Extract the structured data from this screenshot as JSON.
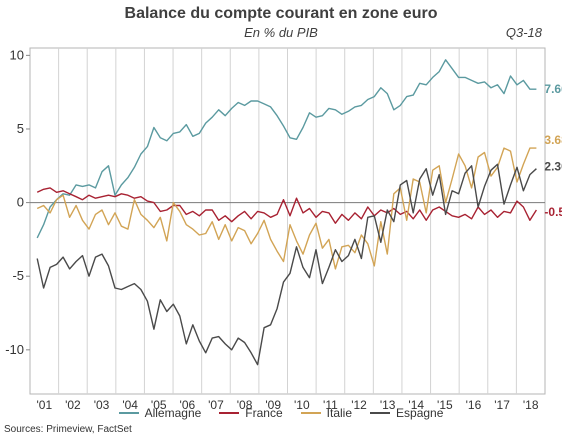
{
  "header": {
    "title": "Balance du compte courant en zone euro",
    "subtitle": "En % du PIB",
    "period": "Q3-18"
  },
  "source": "Sources: Primeview, FactSet",
  "chart_data": {
    "type": "line",
    "title": "Balance du compte courant en zone euro",
    "subtitle": "En % du PIB",
    "x_unit": "quarter",
    "x_tick_labels": [
      "'01",
      "'02",
      "'03",
      "'04",
      "'05",
      "'06",
      "'07",
      "'08",
      "'09",
      "'10",
      "'11",
      "'12",
      "'13",
      "'14",
      "'15",
      "'16",
      "'17",
      "'18"
    ],
    "x_start": "2000-Q4",
    "x_end": "2018-Q3",
    "ylim": [
      -13,
      10.5
    ],
    "y_ticks": [
      10,
      5,
      0,
      -5,
      -10
    ],
    "grid": "vertical",
    "legend_position": "bottom",
    "series": [
      {
        "name": "Allemagne",
        "color": "#5b9aa0",
        "end_label": "7.66",
        "values": [
          -2.4,
          -1.5,
          -0.3,
          0.2,
          0.6,
          0.5,
          1.2,
          1.1,
          1.2,
          1.0,
          2.1,
          2.5,
          0.5,
          1.2,
          1.7,
          2.4,
          3.3,
          3.8,
          5.1,
          4.4,
          4.2,
          4.7,
          4.8,
          5.3,
          4.5,
          4.7,
          5.4,
          5.8,
          6.3,
          5.9,
          6.4,
          6.8,
          6.6,
          6.9,
          6.9,
          6.7,
          6.5,
          5.9,
          5.2,
          4.4,
          4.3,
          5.1,
          6.1,
          5.8,
          5.9,
          6.4,
          6.3,
          6.0,
          6.2,
          6.5,
          6.6,
          7.0,
          7.2,
          7.8,
          7.4,
          6.3,
          6.6,
          7.2,
          7.3,
          8.1,
          8.0,
          8.5,
          8.9,
          9.7,
          9.1,
          8.5,
          8.5,
          8.3,
          8.1,
          8.2,
          7.8,
          8.0,
          7.4,
          8.6,
          8.0,
          8.3,
          7.7,
          7.7
        ]
      },
      {
        "name": "France",
        "color": "#a82232",
        "end_label": "-0.52",
        "values": [
          0.7,
          0.9,
          1.0,
          0.7,
          0.8,
          0.6,
          0.4,
          0.2,
          0.5,
          0.3,
          0.4,
          0.5,
          0.4,
          0.6,
          0.5,
          0.3,
          0.4,
          0.1,
          0.0,
          -0.6,
          -0.5,
          -0.2,
          -0.2,
          -0.8,
          -0.6,
          -0.9,
          -0.5,
          -0.5,
          -1.2,
          -0.9,
          -1.3,
          -0.9,
          -0.6,
          -1.1,
          -0.6,
          -0.7,
          -1.0,
          -0.8,
          0.2,
          -0.9,
          0.3,
          -0.7,
          -0.4,
          -1.0,
          -0.6,
          -0.7,
          -1.4,
          -0.8,
          -1.2,
          -0.7,
          -1.1,
          -0.3,
          -0.9,
          -0.5,
          -0.7,
          -0.4,
          -0.8,
          -0.6,
          -1.1,
          -0.5,
          -1.2,
          -0.5,
          -0.3,
          -0.6,
          -0.9,
          -1.0,
          -0.8,
          -1.1,
          -0.3,
          -0.8,
          -0.5,
          -1.0,
          -0.6,
          -0.7,
          0.1,
          -0.3,
          -1.2,
          -0.5
        ]
      },
      {
        "name": "Italie",
        "color": "#d2a455",
        "end_label": "3.68",
        "values": [
          -0.4,
          -0.2,
          -0.7,
          0.2,
          0.5,
          -1.0,
          -0.2,
          -1.2,
          -1.8,
          -0.8,
          -0.5,
          -1.5,
          -0.7,
          -1.6,
          -1.8,
          0.2,
          -0.8,
          -1.2,
          -1.7,
          -1.0,
          -2.6,
          0.0,
          -0.6,
          -1.5,
          -1.8,
          -2.2,
          -2.1,
          -1.3,
          -2.5,
          -1.5,
          -2.6,
          -1.7,
          -1.9,
          -2.8,
          -2.1,
          -1.2,
          -2.5,
          -3.3,
          -4.0,
          -1.5,
          -2.6,
          -3.5,
          -2.2,
          -1.4,
          -3.1,
          -2.5,
          -4.5,
          -3.0,
          -2.9,
          -3.4,
          -2.2,
          -2.8,
          -4.3,
          -1.3,
          -3.5,
          0.6,
          1.0,
          -1.2,
          1.6,
          1.4,
          -0.7,
          2.2,
          2.5,
          0.0,
          1.6,
          3.3,
          2.5,
          1.0,
          3.1,
          3.4,
          1.8,
          2.4,
          3.7,
          3.5,
          1.4,
          2.6,
          3.7,
          3.7
        ]
      },
      {
        "name": "Espagne",
        "color": "#4a4a4a",
        "end_label": "2.30",
        "values": [
          -3.8,
          -5.8,
          -4.4,
          -4.2,
          -3.7,
          -4.5,
          -4.0,
          -3.6,
          -5.0,
          -3.7,
          -3.5,
          -4.3,
          -5.8,
          -5.9,
          -5.7,
          -5.5,
          -5.9,
          -6.7,
          -8.6,
          -6.6,
          -7.4,
          -6.9,
          -7.7,
          -9.6,
          -8.3,
          -9.4,
          -10.2,
          -9.2,
          -9.1,
          -9.6,
          -10.0,
          -9.2,
          -9.5,
          -10.2,
          -11.0,
          -8.5,
          -8.3,
          -7.2,
          -5.4,
          -4.8,
          -3.0,
          -4.4,
          -5.1,
          -3.2,
          -5.5,
          -4.4,
          -3.2,
          -4.0,
          -3.6,
          -2.5,
          -3.8,
          -1.0,
          -0.9,
          -2.7,
          -0.5,
          -1.3,
          1.2,
          1.5,
          -0.7,
          1.6,
          2.3,
          0.5,
          1.9,
          -0.8,
          0.8,
          0.6,
          2.0,
          2.5,
          -0.3,
          1.1,
          2.2,
          2.6,
          -0.1,
          1.2,
          2.4,
          0.8,
          1.9,
          2.3
        ]
      }
    ]
  }
}
